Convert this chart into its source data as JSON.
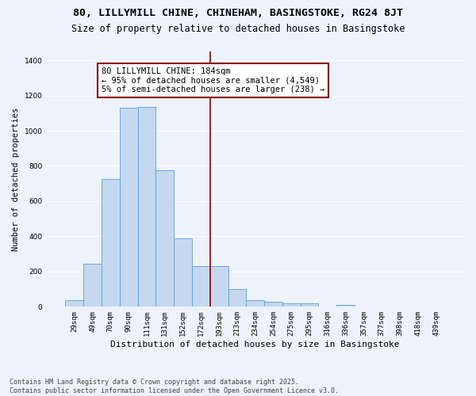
{
  "title1": "80, LILLYMILL CHINE, CHINEHAM, BASINGSTOKE, RG24 8JT",
  "title2": "Size of property relative to detached houses in Basingstoke",
  "xlabel": "Distribution of detached houses by size in Basingstoke",
  "ylabel": "Number of detached properties",
  "categories": [
    "29sqm",
    "49sqm",
    "70sqm",
    "90sqm",
    "111sqm",
    "131sqm",
    "152sqm",
    "172sqm",
    "193sqm",
    "213sqm",
    "234sqm",
    "254sqm",
    "275sqm",
    "295sqm",
    "316sqm",
    "336sqm",
    "357sqm",
    "377sqm",
    "398sqm",
    "418sqm",
    "439sqm"
  ],
  "values": [
    38,
    245,
    725,
    1130,
    1135,
    775,
    390,
    230,
    230,
    100,
    38,
    30,
    20,
    18,
    0,
    10,
    0,
    0,
    0,
    0,
    0
  ],
  "bar_color": "#c5d8f0",
  "bar_edge_color": "#5a9fd4",
  "vline_color": "#8b0000",
  "annotation_text": "80 LILLYMILL CHINE: 184sqm\n← 95% of detached houses are smaller (4,549)\n5% of semi-detached houses are larger (238) →",
  "annotation_box_color": "#8b0000",
  "annotation_box_fill": "#ffffff",
  "ylim": [
    0,
    1450
  ],
  "yticks": [
    0,
    200,
    400,
    600,
    800,
    1000,
    1200,
    1400
  ],
  "bg_color": "#eef2fb",
  "grid_color": "#ffffff",
  "footer": "Contains HM Land Registry data © Crown copyright and database right 2025.\nContains public sector information licensed under the Open Government Licence v3.0.",
  "title1_fontsize": 9.5,
  "title2_fontsize": 8.5,
  "xlabel_fontsize": 8,
  "ylabel_fontsize": 7.5,
  "tick_fontsize": 6.5,
  "annotation_fontsize": 7.5,
  "footer_fontsize": 6
}
